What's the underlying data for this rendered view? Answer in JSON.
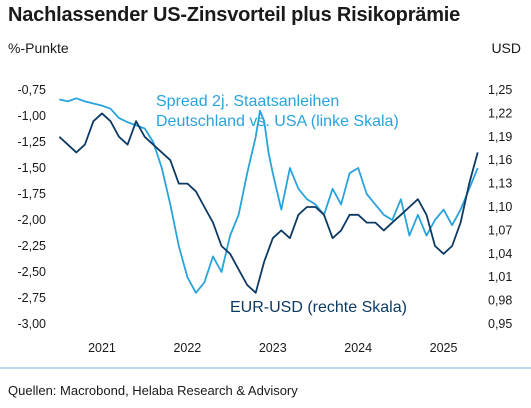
{
  "header": {
    "title": "Nachlassender US-Zinsvorteil plus Risikoprämie",
    "left_unit": "%-Punkte",
    "right_unit": "USD"
  },
  "footer": {
    "source": "Quellen: Macrobond, Helaba Research & Advisory"
  },
  "colors": {
    "spread": "#29a3dc",
    "eurusd": "#0d3a63",
    "divider": "#7ea9cf"
  },
  "chart_data": {
    "type": "line",
    "title": "Nachlassender US-Zinsvorteil plus Risikoprämie",
    "x_tick_labels": [
      "2021",
      "2022",
      "2023",
      "2024",
      "2025"
    ],
    "x_tick_positions": [
      2021.0,
      2022.0,
      2023.0,
      2024.0,
      2025.0
    ],
    "xlim": [
      2020.45,
      2025.45
    ],
    "y_left": {
      "label": "%-Punkte",
      "ticks": [
        "-0,75",
        "-1,00",
        "-1,25",
        "-1,50",
        "-1,75",
        "-2,00",
        "-2,25",
        "-2,50",
        "-2,75",
        "-3,00"
      ],
      "range": [
        -3.0,
        -0.75
      ]
    },
    "y_right": {
      "label": "USD",
      "ticks": [
        "1,25",
        "1,22",
        "1,19",
        "1,16",
        "1,13",
        "1,10",
        "1,07",
        "1,04",
        "1,01",
        "0,98",
        "0,95"
      ],
      "range": [
        0.95,
        1.25
      ]
    },
    "annotations": {
      "spread_line1": "Spread 2j. Staatsanleihen",
      "spread_line2": "Deutschland vs. USA (linke Skala)",
      "eurusd": "EUR-USD (rechte Skala)"
    },
    "series": [
      {
        "name": "Spread 2j. Staatsanleihen Deutschland vs. USA (linke Skala)",
        "axis": "left",
        "x": [
          2020.5,
          2020.6,
          2020.7,
          2020.8,
          2020.9,
          2021.0,
          2021.1,
          2021.2,
          2021.3,
          2021.4,
          2021.5,
          2021.6,
          2021.7,
          2021.8,
          2021.9,
          2022.0,
          2022.1,
          2022.2,
          2022.3,
          2022.4,
          2022.5,
          2022.6,
          2022.7,
          2022.8,
          2022.85,
          2022.9,
          2022.95,
          2023.0,
          2023.1,
          2023.2,
          2023.3,
          2023.4,
          2023.5,
          2023.6,
          2023.7,
          2023.8,
          2023.9,
          2024.0,
          2024.1,
          2024.2,
          2024.3,
          2024.4,
          2024.5,
          2024.6,
          2024.7,
          2024.8,
          2024.9,
          2025.0,
          2025.1,
          2025.2,
          2025.3,
          2025.4
        ],
        "y": [
          -0.84,
          -0.86,
          -0.83,
          -0.86,
          -0.88,
          -0.9,
          -0.93,
          -1.02,
          -1.06,
          -1.09,
          -1.12,
          -1.25,
          -1.5,
          -1.85,
          -2.25,
          -2.55,
          -2.7,
          -2.6,
          -2.35,
          -2.5,
          -2.15,
          -1.95,
          -1.55,
          -1.2,
          -0.95,
          -1.05,
          -1.35,
          -1.55,
          -1.9,
          -1.5,
          -1.7,
          -1.8,
          -1.85,
          -1.95,
          -1.7,
          -1.85,
          -1.55,
          -1.5,
          -1.75,
          -1.85,
          -1.95,
          -2.0,
          -1.8,
          -2.15,
          -1.95,
          -2.15,
          -2.0,
          -1.9,
          -2.05,
          -1.9,
          -1.7,
          -1.5
        ]
      },
      {
        "name": "EUR-USD (rechte Skala)",
        "axis": "right",
        "x": [
          2020.5,
          2020.6,
          2020.7,
          2020.8,
          2020.9,
          2021.0,
          2021.1,
          2021.2,
          2021.3,
          2021.4,
          2021.5,
          2021.6,
          2021.7,
          2021.8,
          2021.9,
          2022.0,
          2022.1,
          2022.2,
          2022.3,
          2022.4,
          2022.5,
          2022.6,
          2022.7,
          2022.8,
          2022.9,
          2023.0,
          2023.1,
          2023.2,
          2023.3,
          2023.4,
          2023.5,
          2023.6,
          2023.7,
          2023.8,
          2023.9,
          2024.0,
          2024.1,
          2024.2,
          2024.3,
          2024.4,
          2024.5,
          2024.6,
          2024.7,
          2024.8,
          2024.9,
          2025.0,
          2025.1,
          2025.2,
          2025.3,
          2025.4
        ],
        "y": [
          1.19,
          1.18,
          1.17,
          1.18,
          1.21,
          1.22,
          1.21,
          1.19,
          1.18,
          1.21,
          1.19,
          1.18,
          1.17,
          1.16,
          1.13,
          1.13,
          1.12,
          1.1,
          1.08,
          1.05,
          1.04,
          1.02,
          1.0,
          0.99,
          1.03,
          1.06,
          1.07,
          1.06,
          1.09,
          1.1,
          1.1,
          1.09,
          1.06,
          1.07,
          1.09,
          1.09,
          1.08,
          1.08,
          1.07,
          1.08,
          1.09,
          1.1,
          1.11,
          1.09,
          1.05,
          1.04,
          1.05,
          1.08,
          1.13,
          1.17
        ]
      }
    ]
  }
}
